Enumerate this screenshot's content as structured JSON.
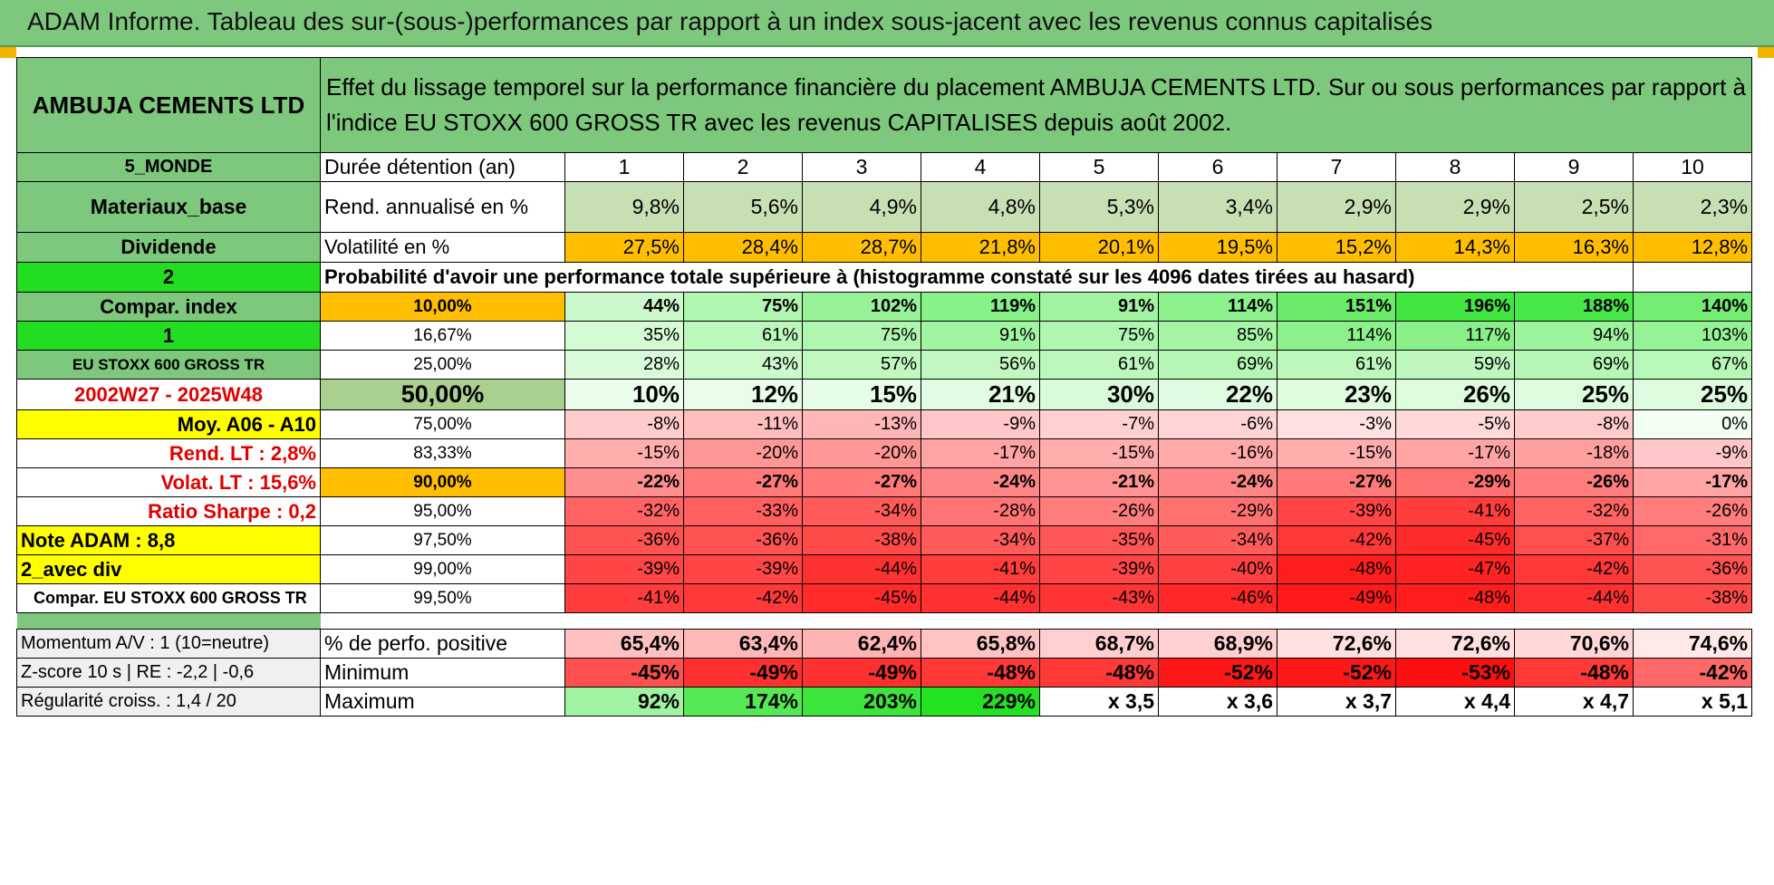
{
  "title": "ADAM Informe. Tableau des sur-(sous-)performances par rapport à un index sous-jacent avec les revenus connus capitalisés",
  "company": "AMBUJA CEMENTS LTD",
  "description": "Effet du lissage temporel sur la performance financière du placement AMBUJA CEMENTS LTD. Sur ou sous performances par rapport à l'indice EU STOXX 600 GROSS TR avec les revenus CAPITALISES depuis août 2002.",
  "left_labels": {
    "region": "5_MONDE",
    "sector": "Materiaux_base",
    "dividend": "Dividende",
    "selector_a": "2",
    "compar_index": "Compar. index",
    "selector_b": "1",
    "index_name": "EU STOXX 600 GROSS TR",
    "period": "2002W27 - 2025W48",
    "moy": "Moy. A06 - A10",
    "rend_lt": "Rend. LT :   2,8%",
    "volat_lt": "Volat. LT :   15,6%",
    "sharpe": "Ratio Sharpe :   0,2",
    "note": "Note ADAM : 8,8",
    "avec_div": "2_avec div",
    "compar_full": "Compar. EU STOXX 600 GROSS TR",
    "momentum": "Momentum A/V : 1 (10=neutre)",
    "zscore": "Z-score 10 s | RE : -2,2 | -0,6",
    "regularite": "Régularité croiss. : 1,4 / 20"
  },
  "header": {
    "duration_label": "Durée détention (an)",
    "years": [
      "1",
      "2",
      "3",
      "4",
      "5",
      "6",
      "7",
      "8",
      "9",
      "10"
    ],
    "rend_label": "Rend. annualisé en %",
    "rend": [
      "9,8%",
      "5,6%",
      "4,9%",
      "4,8%",
      "5,3%",
      "3,4%",
      "2,9%",
      "2,9%",
      "2,5%",
      "2,3%"
    ],
    "vol_label": "Volatilité en %",
    "vol": [
      "27,5%",
      "28,4%",
      "28,7%",
      "21,8%",
      "20,1%",
      "19,5%",
      "15,2%",
      "14,3%",
      "16,3%",
      "12,8%"
    ],
    "prob_label": "Probabilité d'avoir une performance totale supérieure à (histogramme constaté sur les 4096 dates tirées au hasard)"
  },
  "prob_rows": [
    {
      "p": "10,00%",
      "v": [
        "44%",
        "75%",
        "102%",
        "119%",
        "91%",
        "114%",
        "151%",
        "196%",
        "188%",
        "140%"
      ]
    },
    {
      "p": "16,67%",
      "v": [
        "35%",
        "61%",
        "75%",
        "91%",
        "75%",
        "85%",
        "114%",
        "117%",
        "94%",
        "103%"
      ]
    },
    {
      "p": "25,00%",
      "v": [
        "28%",
        "43%",
        "57%",
        "56%",
        "61%",
        "69%",
        "61%",
        "59%",
        "69%",
        "67%"
      ]
    },
    {
      "p": "50,00%",
      "v": [
        "10%",
        "12%",
        "15%",
        "21%",
        "30%",
        "22%",
        "23%",
        "26%",
        "25%",
        "25%"
      ]
    },
    {
      "p": "75,00%",
      "v": [
        "-8%",
        "-11%",
        "-13%",
        "-9%",
        "-7%",
        "-6%",
        "-3%",
        "-5%",
        "-8%",
        "0%"
      ]
    },
    {
      "p": "83,33%",
      "v": [
        "-15%",
        "-20%",
        "-20%",
        "-17%",
        "-15%",
        "-16%",
        "-15%",
        "-17%",
        "-18%",
        "-9%"
      ]
    },
    {
      "p": "90,00%",
      "v": [
        "-22%",
        "-27%",
        "-27%",
        "-24%",
        "-21%",
        "-24%",
        "-27%",
        "-29%",
        "-26%",
        "-17%"
      ]
    },
    {
      "p": "95,00%",
      "v": [
        "-32%",
        "-33%",
        "-34%",
        "-28%",
        "-26%",
        "-29%",
        "-39%",
        "-41%",
        "-32%",
        "-26%"
      ]
    },
    {
      "p": "97,50%",
      "v": [
        "-36%",
        "-36%",
        "-38%",
        "-34%",
        "-35%",
        "-34%",
        "-42%",
        "-45%",
        "-37%",
        "-31%"
      ]
    },
    {
      "p": "99,00%",
      "v": [
        "-39%",
        "-39%",
        "-44%",
        "-41%",
        "-39%",
        "-40%",
        "-48%",
        "-47%",
        "-42%",
        "-36%"
      ]
    },
    {
      "p": "99,50%",
      "v": [
        "-41%",
        "-42%",
        "-45%",
        "-44%",
        "-43%",
        "-46%",
        "-49%",
        "-48%",
        "-44%",
        "-38%"
      ]
    }
  ],
  "stats": {
    "pos_label": "% de perfo. positive",
    "pos": [
      "65,4%",
      "63,4%",
      "62,4%",
      "65,8%",
      "68,7%",
      "68,9%",
      "72,6%",
      "72,6%",
      "70,6%",
      "74,6%"
    ],
    "min_label": "Minimum",
    "min": [
      "-45%",
      "-49%",
      "-49%",
      "-48%",
      "-48%",
      "-52%",
      "-52%",
      "-53%",
      "-48%",
      "-42%"
    ],
    "max_label": "Maximum",
    "max": [
      "92%",
      "174%",
      "203%",
      "229%",
      "x 3,5",
      "x 3,6",
      "x 3,7",
      "x 4,4",
      "x 4,7",
      "x 5,1"
    ]
  },
  "colors": {
    "banner": "#7dc87d",
    "label_green": "#7dc87d",
    "bright_green": "#22dd22",
    "yellow": "#ffff00",
    "orange": "#ffbf00",
    "red_text": "#e00000"
  }
}
